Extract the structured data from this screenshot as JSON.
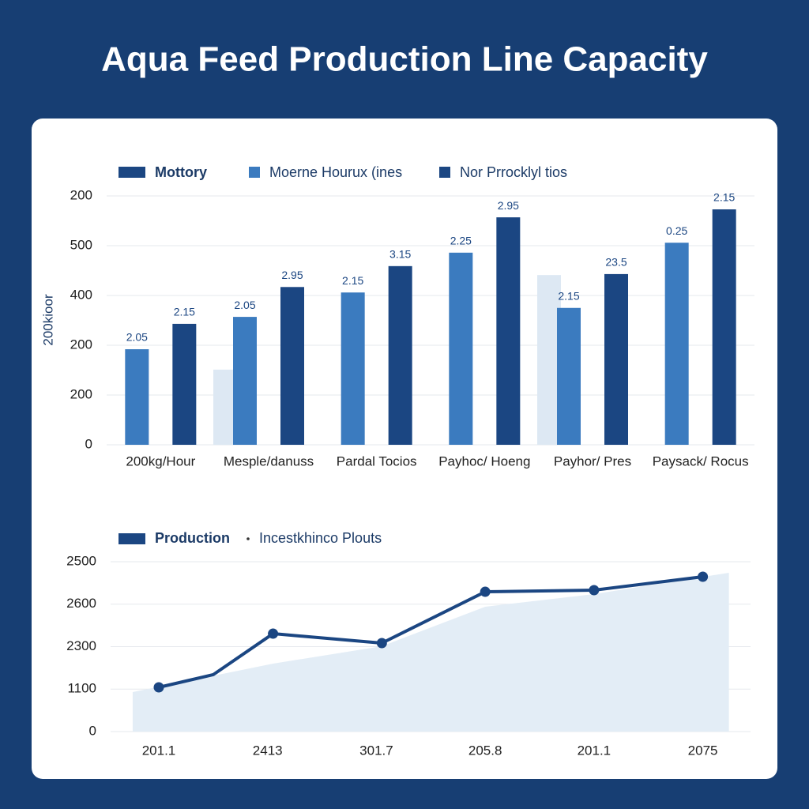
{
  "title": "Aqua Feed Production Line Capacity",
  "chart_data": [
    {
      "type": "bar",
      "y_label": "200kioor",
      "categories": [
        "200kg/Hour",
        "Mesple/danuss",
        "Pardal Tocios",
        "Payhoc/ Hoeng",
        "Payhor/ Pres",
        "Paysack/ Rocus"
      ],
      "series": [
        {
          "name": "Mottory",
          "color": "#1b4682",
          "values": [
            243,
            317,
            359,
            457,
            343,
            473
          ],
          "annotations": [
            "2.15",
            "2.95",
            "3.15",
            "2.95",
            "23.5",
            "2.15"
          ]
        },
        {
          "name": "Moerne Hourux (ines",
          "color": "#3b7bbf",
          "values": [
            192,
            257,
            306,
            386,
            275,
            406
          ],
          "annotations": [
            "2.05",
            "2.05",
            "2.15",
            "2.25",
            "2.15",
            "0.25"
          ]
        },
        {
          "name": "Nor Prrocklyl tios",
          "color": "#dde8f3",
          "values": [
            null,
            151,
            null,
            null,
            341,
            null
          ]
        }
      ],
      "ylim": [
        0,
        500
      ],
      "yticks": [
        0,
        {
          "value": 100,
          "label": "200"
        },
        {
          "value": 200,
          "label": "200"
        },
        {
          "value": 300,
          "label": "400"
        },
        {
          "value": 400,
          "label": "500"
        },
        {
          "value": 500,
          "label": "200"
        }
      ],
      "grid": true
    },
    {
      "type": "line",
      "series": [
        {
          "name": "Production",
          "color": "#1b4682",
          "kind": "line",
          "x": [
            0,
            0.5,
            1.05,
            2.05,
            3,
            4,
            5
          ],
          "values": [
            521,
            670,
            1153,
            1042,
            1646,
            1665,
            1823
          ]
        },
        {
          "name": "Incestkhinco Plouts",
          "color": "#e3edf6",
          "kind": "area",
          "x": [
            -0.24,
            1.05,
            2.05,
            3,
            4,
            5.24
          ],
          "values": [
            465,
            800,
            1005,
            1470,
            1619,
            1870
          ]
        }
      ],
      "xlim": [
        -0.3,
        5.4
      ],
      "xticks": [
        {
          "value": 0,
          "label": "201.1"
        },
        {
          "value": 1,
          "label": "2413"
        },
        {
          "value": 2,
          "label": "301.7"
        },
        {
          "value": 3,
          "label": "205.8"
        },
        {
          "value": 4,
          "label": "201.1"
        },
        {
          "value": 5,
          "label": "2075"
        }
      ],
      "ylim": [
        0,
        2000
      ],
      "yticks": [
        0,
        {
          "value": 500,
          "label": "1100"
        },
        {
          "value": 1000,
          "label": "2300"
        },
        {
          "value": 1500,
          "label": "2600"
        },
        {
          "value": 2000,
          "label": "2500"
        }
      ],
      "grid": true
    }
  ]
}
